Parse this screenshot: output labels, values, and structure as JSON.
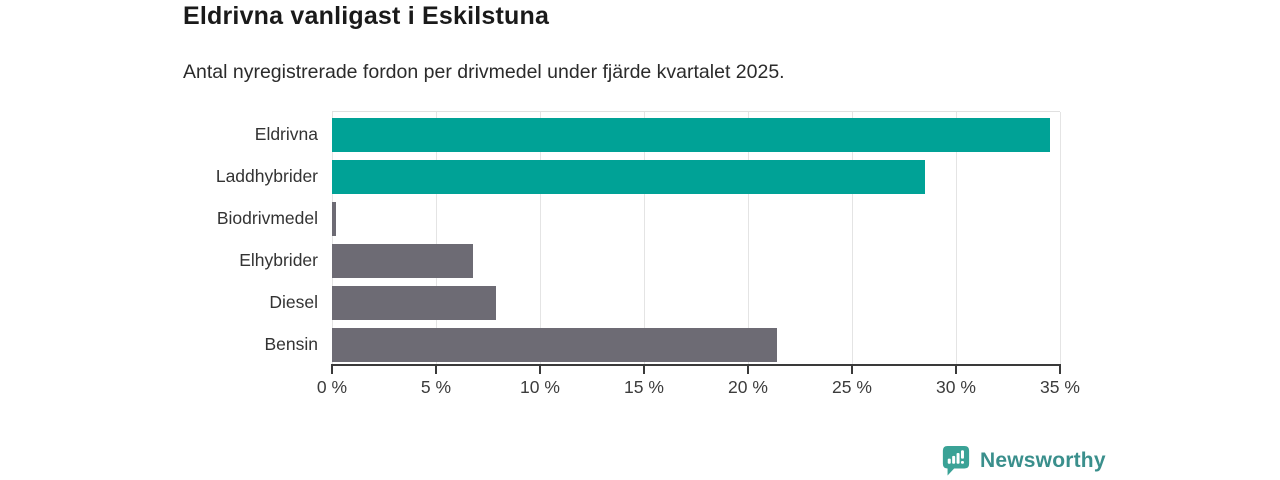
{
  "title": "Eldrivna vanligast i Eskilstuna",
  "subtitle": "Antal nyregistrerade fordon per drivmedel under fjärde kvartalet 2025.",
  "chart_data": {
    "type": "bar",
    "orientation": "horizontal",
    "categories": [
      "Eldrivna",
      "Laddhybrider",
      "Biodrivmedel",
      "Elhybrider",
      "Diesel",
      "Bensin"
    ],
    "values": [
      34.5,
      28.5,
      0.2,
      6.8,
      7.9,
      21.4
    ],
    "unit": "%",
    "xlabel": "",
    "ylabel": "",
    "xlim": [
      0,
      35
    ],
    "x_tick_values": [
      0,
      5,
      10,
      15,
      20,
      25,
      30,
      35
    ],
    "x_tick_labels": [
      "0 %",
      "5 %",
      "10 %",
      "15 %",
      "20 %",
      "25 %",
      "30 %",
      "35 %"
    ],
    "bar_colors": [
      "#00a296",
      "#00a296",
      "#6d6b74",
      "#6d6b74",
      "#6d6b74",
      "#6d6b74"
    ],
    "grid": true,
    "legend": false
  },
  "colors": {
    "teal": "#00a296",
    "gray": "#6d6b74",
    "gridline": "#e4e4e4",
    "axis": "#3a3a3a",
    "logo": "#3a8f8c",
    "logo_icon": "#3aa296"
  },
  "branding": {
    "logo_text": "Newsworthy"
  }
}
